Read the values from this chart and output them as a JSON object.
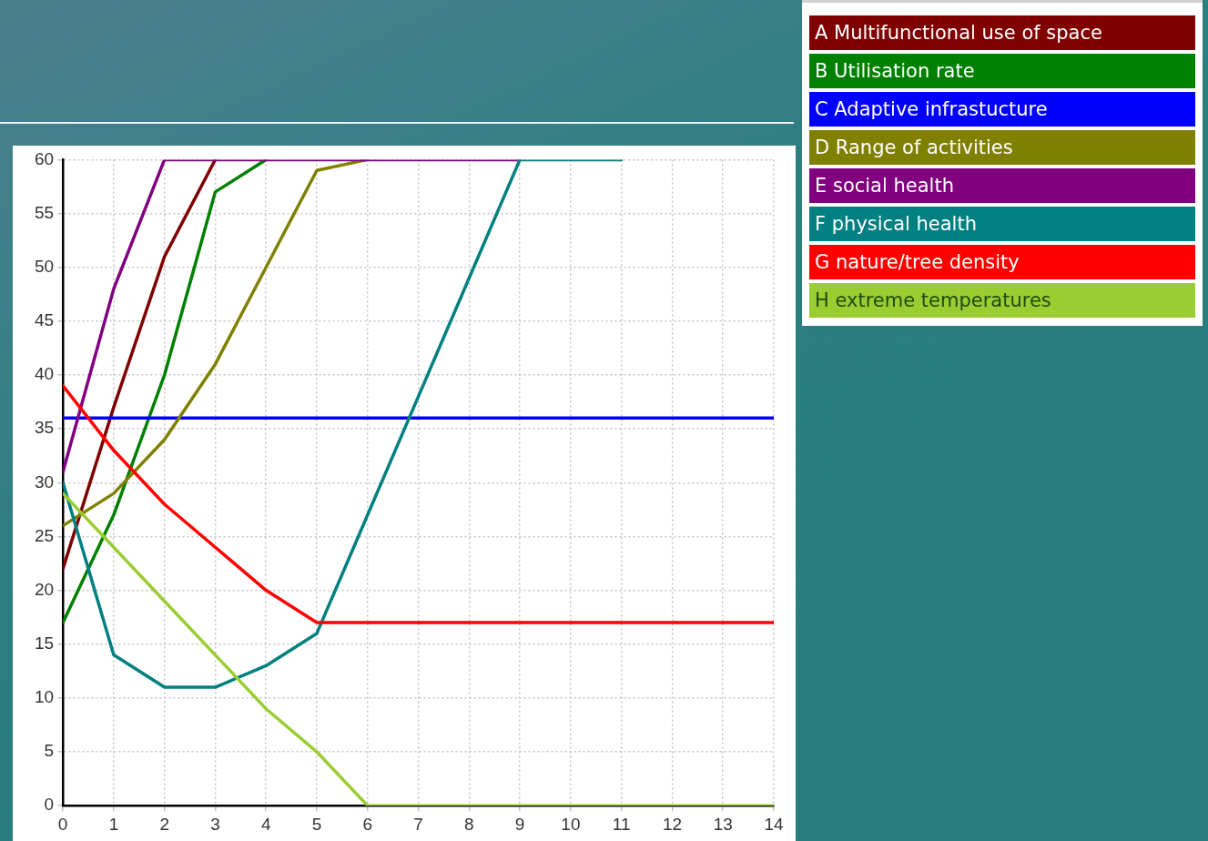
{
  "chart_data": {
    "type": "line",
    "x": [
      0,
      1,
      2,
      3,
      4,
      5,
      6,
      7,
      8,
      9,
      10,
      11,
      12,
      13,
      14
    ],
    "xlim": [
      0,
      14
    ],
    "xticks": [
      0,
      1,
      2,
      3,
      4,
      5,
      6,
      7,
      8,
      9,
      10,
      11,
      12,
      13,
      14
    ],
    "ylim": [
      0,
      60
    ],
    "yticks": [
      0,
      5,
      10,
      15,
      20,
      25,
      30,
      35,
      40,
      45,
      50,
      55,
      60
    ],
    "grid": true,
    "legend": "top right",
    "series": [
      {
        "name": "A Multifunctional use of space",
        "color": "#800000",
        "values": [
          22,
          37,
          51,
          60,
          null,
          null,
          null,
          null,
          null,
          null,
          null,
          null,
          null,
          null,
          null
        ]
      },
      {
        "name": "B Utilisation rate",
        "color": "#008000",
        "values": [
          17,
          27,
          40,
          57,
          60,
          null,
          null,
          null,
          null,
          null,
          null,
          null,
          null,
          null,
          null
        ]
      },
      {
        "name": "C Adaptive infrastucture",
        "color": "#0000ff",
        "values": [
          36,
          36,
          36,
          36,
          36,
          36,
          36,
          36,
          36,
          36,
          36,
          36,
          36,
          36,
          36
        ]
      },
      {
        "name": "D Range of activities",
        "color": "#808000",
        "values": [
          26,
          29,
          34,
          41,
          50,
          59,
          60,
          null,
          null,
          null,
          null,
          null,
          null,
          null,
          null
        ]
      },
      {
        "name": "E social health",
        "color": "#800080",
        "values": [
          31,
          48,
          60,
          60,
          60,
          60,
          60,
          60,
          60,
          60,
          null,
          null,
          null,
          null,
          null
        ]
      },
      {
        "name": "F physical health",
        "color": "#008080",
        "values": [
          30,
          14,
          11,
          11,
          13,
          16,
          27,
          38,
          49,
          60,
          60,
          60,
          null,
          null,
          null
        ]
      },
      {
        "name": "G nature/tree density",
        "color": "#ff0000",
        "values": [
          39,
          33,
          28,
          24,
          20,
          17,
          17,
          17,
          17,
          17,
          17,
          17,
          17,
          17,
          17
        ]
      },
      {
        "name": "H extreme temperatures",
        "color": "#9acd32",
        "values": [
          29,
          24,
          19,
          14,
          9,
          5,
          0,
          0,
          0,
          0,
          0,
          0,
          0,
          0,
          0
        ]
      }
    ]
  }
}
